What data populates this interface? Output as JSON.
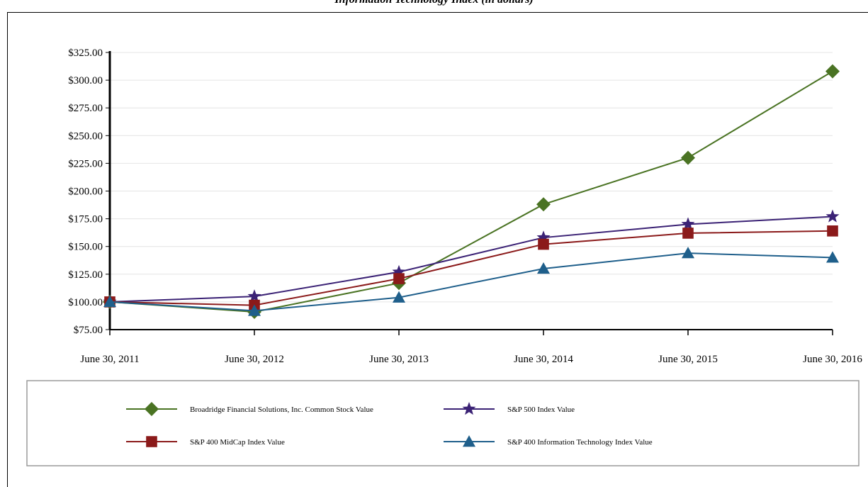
{
  "chart_data": {
    "type": "line",
    "title": "Information Technology Index (in dollars)",
    "xlabel": "",
    "ylabel": "",
    "categories": [
      "June 30, 2011",
      "June 30, 2012",
      "June 30, 2013",
      "June 30, 2014",
      "June 30, 2015",
      "June 30, 2016"
    ],
    "ylim": [
      75,
      325
    ],
    "ytick_step": 25,
    "ytick_labels": [
      "$75.00",
      "$100.00",
      "$125.00",
      "$150.00",
      "$175.00",
      "$200.00",
      "$225.00",
      "$250.00",
      "$275.00",
      "$300.00",
      "$325.00"
    ],
    "grid": true,
    "legend_position": "bottom",
    "series": [
      {
        "name": "Broadridge Financial Solutions, Inc. Common Stock Value",
        "color": "#4a7323",
        "marker": "diamond",
        "values": [
          100,
          91,
          117,
          188,
          230,
          308
        ]
      },
      {
        "name": "S&P 500 Index Value",
        "color": "#3b2275",
        "marker": "star",
        "values": [
          100,
          105,
          127,
          158,
          170,
          177
        ]
      },
      {
        "name": "S&P 400 MidCap Index Value",
        "color": "#8b1a1a",
        "marker": "square",
        "values": [
          100,
          97,
          121,
          152,
          162,
          164
        ]
      },
      {
        "name": "S&P 400 Information Technology Index Value",
        "color": "#1f5f8b",
        "marker": "triangle",
        "values": [
          100,
          92,
          104,
          130,
          144,
          140
        ]
      }
    ]
  }
}
